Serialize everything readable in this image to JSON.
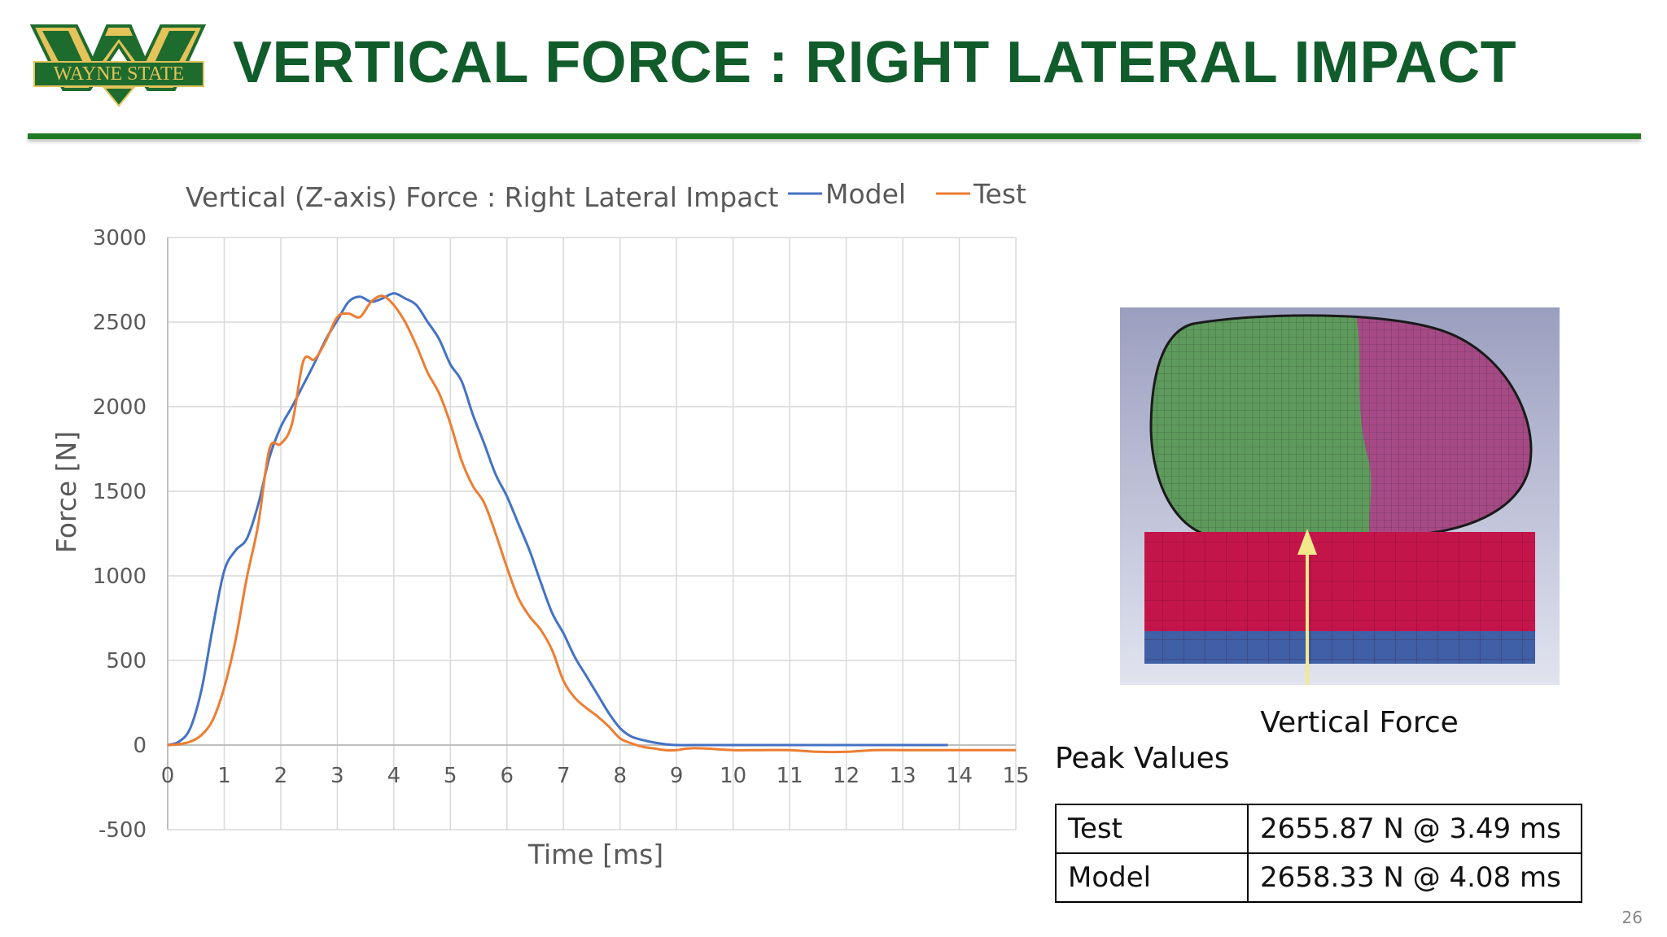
{
  "slide": {
    "title": "VERTICAL FORCE : RIGHT LATERAL IMPACT",
    "logo_text": "WAYNE STATE",
    "page_number": "26",
    "colors": {
      "title": "#115c2b",
      "rule": "#1f7a21",
      "logo_green": "#1e6b2e",
      "logo_gold": "#e3c35a"
    }
  },
  "chart_data": {
    "type": "line",
    "title": "Vertical (Z-axis) Force : Right Lateral Impact",
    "xlabel": "Time [ms]",
    "ylabel": "Force [N]",
    "xlim": [
      0,
      15
    ],
    "ylim": [
      -500,
      3000
    ],
    "xticks": [
      "0",
      "1",
      "2",
      "3",
      "4",
      "5",
      "6",
      "7",
      "8",
      "9",
      "10",
      "11",
      "12",
      "13",
      "14",
      "15"
    ],
    "yticks": [
      "-500",
      "0",
      "500",
      "1000",
      "1500",
      "2000",
      "2500",
      "3000"
    ],
    "legend_position": "top",
    "grid": true,
    "series": [
      {
        "name": "Model",
        "color": "#4472c4",
        "x": [
          0,
          0.2,
          0.4,
          0.6,
          0.8,
          1.0,
          1.2,
          1.4,
          1.6,
          1.8,
          2.0,
          2.2,
          2.4,
          2.6,
          2.8,
          3.0,
          3.2,
          3.4,
          3.6,
          3.8,
          4.0,
          4.2,
          4.4,
          4.6,
          4.8,
          5.0,
          5.2,
          5.4,
          5.6,
          5.8,
          6.0,
          6.2,
          6.4,
          6.6,
          6.8,
          7.0,
          7.2,
          7.4,
          7.6,
          7.8,
          8.0,
          8.2,
          8.4,
          8.6,
          8.8,
          9.0,
          9.5,
          10,
          11,
          12,
          13,
          13.8
        ],
        "y": [
          0,
          20,
          100,
          330,
          700,
          1030,
          1150,
          1220,
          1420,
          1700,
          1880,
          2000,
          2130,
          2260,
          2400,
          2510,
          2620,
          2650,
          2620,
          2640,
          2670,
          2640,
          2600,
          2500,
          2400,
          2250,
          2150,
          1950,
          1780,
          1600,
          1470,
          1310,
          1150,
          960,
          780,
          660,
          520,
          410,
          300,
          190,
          100,
          50,
          30,
          15,
          5,
          0,
          0,
          0,
          0,
          0,
          0,
          0
        ]
      },
      {
        "name": "Test",
        "color": "#ed7d31",
        "x": [
          0,
          0.2,
          0.4,
          0.6,
          0.8,
          1.0,
          1.2,
          1.4,
          1.6,
          1.8,
          2.0,
          2.2,
          2.4,
          2.6,
          2.8,
          3.0,
          3.2,
          3.4,
          3.6,
          3.8,
          4.0,
          4.2,
          4.4,
          4.6,
          4.8,
          5.0,
          5.2,
          5.4,
          5.6,
          5.8,
          6.0,
          6.2,
          6.4,
          6.6,
          6.8,
          7.0,
          7.2,
          7.4,
          7.6,
          7.8,
          8.0,
          8.2,
          8.4,
          8.6,
          8.8,
          9.0,
          9.2,
          9.5,
          10,
          10.5,
          11,
          11.5,
          12,
          12.5,
          13,
          13.5,
          14,
          14.5,
          15
        ],
        "y": [
          0,
          5,
          20,
          60,
          150,
          340,
          620,
          990,
          1300,
          1750,
          1780,
          1900,
          2270,
          2280,
          2390,
          2530,
          2550,
          2530,
          2620,
          2655,
          2600,
          2500,
          2360,
          2200,
          2080,
          1900,
          1680,
          1530,
          1430,
          1250,
          1050,
          870,
          760,
          680,
          560,
          380,
          280,
          220,
          170,
          110,
          40,
          10,
          -10,
          -20,
          -30,
          -30,
          -20,
          -20,
          -30,
          -30,
          -30,
          -40,
          -40,
          -30,
          -30,
          -30,
          -30,
          -30,
          -30
        ]
      }
    ]
  },
  "figure": {
    "caption": "Vertical Force"
  },
  "peak_values": {
    "heading": "Peak Values",
    "rows": [
      {
        "label": "Test",
        "value": "2655.87 N @ 3.49 ms"
      },
      {
        "label": "Model",
        "value": "2658.33 N @ 4.08 ms"
      }
    ]
  }
}
